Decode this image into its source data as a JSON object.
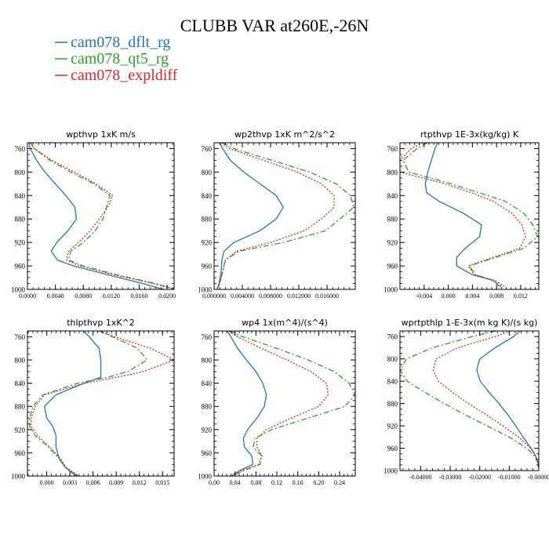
{
  "title": "CLUBB VAR at260E,-26N",
  "legend": [
    {
      "name": "cam078_dflt_rg",
      "color": "#1f77b4",
      "dash": "solid"
    },
    {
      "name": "cam078_qt5_rg",
      "color": "#2ca02c",
      "dash": "dashdot"
    },
    {
      "name": "cam078_expldiff",
      "color": "#d62728",
      "dash": "dotted"
    }
  ],
  "chart_data": [
    {
      "type": "line",
      "title": "wpthvp  1xK m/s",
      "xlim": [
        0,
        0.021
      ],
      "ylim": [
        1000,
        750
      ],
      "xticks": [
        0,
        0.004,
        0.008,
        0.012,
        0.016,
        0.02
      ],
      "xtick_labels": [
        "0.0000",
        "0.0040",
        "0.0080",
        "0.0120",
        "0.0160",
        "0.0200"
      ],
      "yticks": [
        760,
        800,
        840,
        880,
        920,
        960,
        1000
      ],
      "y": [
        750,
        760,
        780,
        800,
        820,
        840,
        860,
        880,
        900,
        920,
        935,
        950,
        960,
        975,
        990,
        1000
      ],
      "series": [
        {
          "name": "cam078_dflt_rg",
          "values": [
            0.0002,
            0.0004,
            0.0013,
            0.0025,
            0.004,
            0.0055,
            0.0068,
            0.007,
            0.0058,
            0.0042,
            0.0034,
            0.0043,
            0.0066,
            0.0115,
            0.0165,
            0.0195
          ]
        },
        {
          "name": "cam078_qt5_rg",
          "values": [
            0.0004,
            0.001,
            0.0032,
            0.0062,
            0.0095,
            0.0118,
            0.0113,
            0.0108,
            0.0097,
            0.008,
            0.0062,
            0.0059,
            0.008,
            0.0128,
            0.0183,
            0.0213
          ]
        },
        {
          "name": "cam078_expldiff",
          "values": [
            0.0004,
            0.001,
            0.0035,
            0.0067,
            0.0098,
            0.0122,
            0.0115,
            0.0103,
            0.009,
            0.0073,
            0.0059,
            0.0056,
            0.0075,
            0.0124,
            0.018,
            0.0212
          ]
        }
      ]
    },
    {
      "type": "line",
      "title": "wp2thvp  1xK m^2/s^2",
      "xlim": [
        0,
        0.02
      ],
      "ylim": [
        1000,
        750
      ],
      "xticks": [
        0,
        0.004,
        0.008,
        0.012,
        0.016
      ],
      "xtick_labels": [
        "0.000000",
        "0.004000",
        "0.008000",
        "0.012000",
        "0.016000"
      ],
      "yticks": [
        760,
        800,
        840,
        880,
        920,
        960,
        1000
      ],
      "y": [
        750,
        760,
        780,
        800,
        820,
        840,
        860,
        880,
        900,
        920,
        935,
        950,
        970,
        990,
        1000
      ],
      "series": [
        {
          "name": "cam078_dflt_rg",
          "values": [
            0.0008,
            0.0012,
            0.0023,
            0.0042,
            0.0065,
            0.0088,
            0.0098,
            0.0088,
            0.0065,
            0.0028,
            0.0014,
            0.0011,
            0.001,
            0.0007,
            0.0004
          ]
        },
        {
          "name": "cam078_qt5_rg",
          "values": [
            0.0012,
            0.0028,
            0.0082,
            0.0135,
            0.0173,
            0.0193,
            0.0198,
            0.0178,
            0.0158,
            0.0098,
            0.0035,
            0.0016,
            0.0012,
            0.0008,
            0.0004
          ]
        },
        {
          "name": "cam078_expldiff",
          "values": [
            0.001,
            0.0022,
            0.007,
            0.0118,
            0.0152,
            0.017,
            0.017,
            0.0152,
            0.0128,
            0.008,
            0.0032,
            0.0016,
            0.0012,
            0.0008,
            0.0004
          ]
        }
      ]
    },
    {
      "type": "line",
      "title": "rtpthvp  1E-3x(kg/kg) K",
      "xlim": [
        -0.008,
        0.015
      ],
      "ylim": [
        1000,
        750
      ],
      "xticks": [
        -0.004,
        0,
        0.004,
        0.008,
        0.012
      ],
      "xtick_labels": [
        "-0.004",
        "0.000",
        "0.004",
        "0.008",
        "0.012"
      ],
      "yticks": [
        760,
        800,
        840,
        880,
        920,
        960,
        1000
      ],
      "y": [
        750,
        760,
        780,
        800,
        820,
        835,
        850,
        870,
        890,
        910,
        930,
        945,
        960,
        975,
        985,
        995
      ],
      "series": [
        {
          "name": "cam078_dflt_rg",
          "values": [
            -0.0018,
            -0.0022,
            -0.0028,
            -0.0034,
            -0.0038,
            -0.0036,
            -0.0015,
            0.0025,
            0.0055,
            0.0052,
            0.0028,
            0.0014,
            0.0014,
            0.004,
            0.0075,
            0.0085
          ]
        },
        {
          "name": "cam078_qt5_rg",
          "values": [
            -0.0035,
            -0.0052,
            -0.0075,
            -0.0065,
            0.0005,
            0.005,
            0.0095,
            0.0125,
            0.014,
            0.0148,
            0.0125,
            0.008,
            0.0035,
            0.0045,
            0.0075,
            0.0088
          ]
        },
        {
          "name": "cam078_expldiff",
          "values": [
            -0.0042,
            -0.0062,
            -0.008,
            -0.008,
            -0.0005,
            0.0038,
            0.0075,
            0.0105,
            0.0122,
            0.0128,
            0.0118,
            0.0075,
            0.0033,
            0.0043,
            0.0078,
            0.0093
          ]
        }
      ]
    },
    {
      "type": "line",
      "title": "thlpthvp  1xK^2",
      "xlim": [
        -0.0025,
        0.0165
      ],
      "ylim": [
        1000,
        750
      ],
      "xticks": [
        0,
        0.003,
        0.006,
        0.009,
        0.012,
        0.015
      ],
      "xtick_labels": [
        "0.000",
        "0.003",
        "0.006",
        "0.009",
        "0.012",
        "0.015"
      ],
      "yticks": [
        760,
        800,
        840,
        880,
        920,
        960,
        1000
      ],
      "y": [
        750,
        760,
        780,
        800,
        820,
        830,
        840,
        860,
        880,
        900,
        915,
        930,
        950,
        970,
        985,
        1000
      ],
      "series": [
        {
          "name": "cam078_dflt_rg",
          "values": [
            0.0048,
            0.0055,
            0.0068,
            0.007,
            0.007,
            0.007,
            0.0048,
            0.0012,
            -0.0003,
            0.0,
            0.0008,
            0.0012,
            0.0012,
            0.0016,
            0.0024,
            0.0038
          ]
        },
        {
          "name": "cam078_qt5_rg",
          "values": [
            0.0068,
            0.0085,
            0.0118,
            0.013,
            0.0105,
            0.0078,
            0.004,
            -0.0005,
            -0.0018,
            -0.0022,
            -0.0022,
            -0.0015,
            0.0002,
            0.0016,
            0.0024,
            0.004
          ]
        },
        {
          "name": "cam078_expldiff",
          "values": [
            0.0068,
            0.0088,
            0.0135,
            0.0165,
            0.0125,
            0.009,
            0.005,
            -0.0003,
            -0.0015,
            -0.002,
            -0.002,
            -0.0012,
            0.0004,
            0.0018,
            0.0025,
            0.0042
          ]
        }
      ]
    },
    {
      "type": "line",
      "title": "wp4  1x(m^4)/(s^4)",
      "xlim": [
        0,
        0.27
      ],
      "ylim": [
        1000,
        750
      ],
      "xticks": [
        0,
        0.04,
        0.08,
        0.12,
        0.16,
        0.2,
        0.24
      ],
      "xtick_labels": [
        "0.00",
        "0.04",
        "0.08",
        "0.12",
        "0.16",
        "0.20",
        "0.24"
      ],
      "yticks": [
        760,
        800,
        840,
        880,
        920,
        960,
        1000
      ],
      "y": [
        750,
        760,
        780,
        800,
        820,
        840,
        860,
        880,
        900,
        920,
        935,
        950,
        965,
        980,
        990,
        1000
      ],
      "series": [
        {
          "name": "cam078_dflt_rg",
          "values": [
            0.025,
            0.032,
            0.045,
            0.062,
            0.08,
            0.093,
            0.1,
            0.096,
            0.082,
            0.064,
            0.056,
            0.058,
            0.072,
            0.074,
            0.05,
            0.032
          ]
        },
        {
          "name": "cam078_qt5_rg",
          "values": [
            0.03,
            0.055,
            0.12,
            0.18,
            0.23,
            0.258,
            0.27,
            0.25,
            0.18,
            0.11,
            0.078,
            0.075,
            0.09,
            0.088,
            0.058,
            0.035
          ]
        },
        {
          "name": "cam078_expldiff",
          "values": [
            0.028,
            0.045,
            0.09,
            0.14,
            0.185,
            0.215,
            0.218,
            0.2,
            0.148,
            0.1,
            0.082,
            0.082,
            0.092,
            0.085,
            0.055,
            0.032
          ]
        }
      ]
    },
    {
      "type": "line",
      "title": "wprtpthlp  1-E-3x(m kg K)/(s kg)",
      "xlim": [
        -0.047,
        0.0
      ],
      "ylim": [
        1000,
        750
      ],
      "xticks": [
        -0.04,
        -0.03,
        -0.02,
        -0.01,
        0.0
      ],
      "xtick_labels": [
        "-0.04000",
        "-0.03000",
        "-0.02000",
        "-0.01000",
        "-0.00000"
      ],
      "yticks": [
        760,
        800,
        840,
        880,
        920,
        960,
        1000
      ],
      "y": [
        750,
        760,
        780,
        800,
        820,
        840,
        860,
        880,
        900,
        920,
        940,
        955,
        965,
        975,
        985,
        995
      ],
      "series": [
        {
          "name": "cam078_dflt_rg",
          "values": [
            -0.0065,
            -0.0085,
            -0.0148,
            -0.02,
            -0.021,
            -0.0198,
            -0.0168,
            -0.0135,
            -0.0105,
            -0.0078,
            -0.0053,
            -0.0033,
            -0.002,
            -0.001,
            -0.0003,
            -0.0001
          ]
        },
        {
          "name": "cam078_qt5_rg",
          "values": [
            -0.0145,
            -0.0225,
            -0.036,
            -0.0448,
            -0.047,
            -0.0445,
            -0.0385,
            -0.032,
            -0.025,
            -0.0175,
            -0.01,
            -0.0055,
            -0.003,
            -0.0014,
            -0.0004,
            -0.0001
          ]
        },
        {
          "name": "cam078_expldiff",
          "values": [
            -0.0095,
            -0.0148,
            -0.0275,
            -0.0348,
            -0.0358,
            -0.034,
            -0.0292,
            -0.0238,
            -0.0178,
            -0.0122,
            -0.0068,
            -0.0038,
            -0.002,
            -0.001,
            -0.0003,
            -0.0001
          ]
        }
      ]
    }
  ]
}
